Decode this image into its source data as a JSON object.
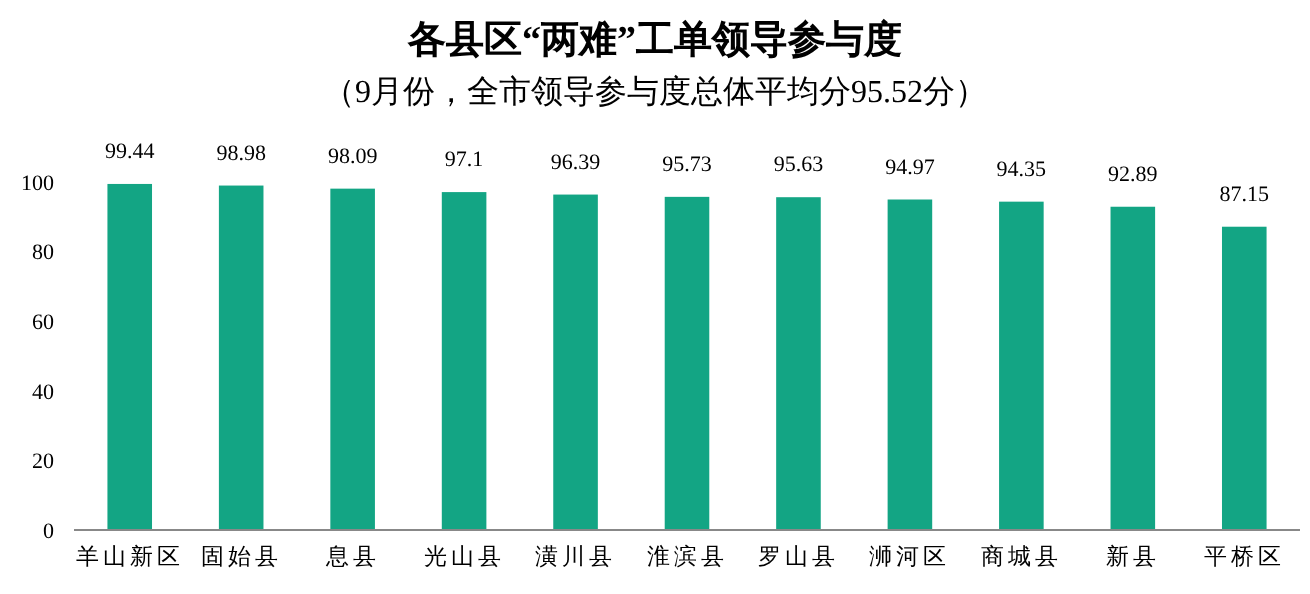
{
  "chart_data": {
    "type": "bar",
    "title": "各县区“两难”工单领导参与度",
    "subtitle": "（9月份，全市领导参与度总体平均分95.52分）",
    "categories": [
      "羊山新区",
      "固始县",
      "息县",
      "光山县",
      "潢川县",
      "淮滨县",
      "罗山县",
      "浉河区",
      "商城县",
      "新县",
      "平桥区"
    ],
    "values": [
      99.44,
      98.98,
      98.09,
      97.1,
      96.39,
      95.73,
      95.63,
      94.97,
      94.35,
      92.89,
      87.15
    ],
    "color": "#13a584",
    "ylim": [
      0,
      100
    ],
    "yticks": [
      0,
      20,
      40,
      60,
      80,
      100
    ],
    "data_labels": true
  }
}
